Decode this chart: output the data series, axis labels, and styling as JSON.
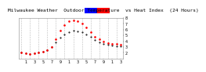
{
  "title": "Milwaukee Weather  Outdoor Temperature  vs Heat Index  (24 Hours)",
  "bg_color": "#ffffff",
  "plot_bg_color": "#ffffff",
  "text_color": "#000000",
  "grid_color": "#aaaaaa",
  "legend_temp_color": "#0000ff",
  "legend_heat_color": "#ff0000",
  "dot_color_temp": "#000000",
  "dot_color_heat": "#ff0000",
  "x_hours": [
    0,
    1,
    2,
    3,
    4,
    5,
    6,
    7,
    8,
    9,
    10,
    11,
    12,
    13,
    14,
    15,
    16,
    17,
    18,
    19,
    20,
    21,
    22,
    23
  ],
  "x_labels": [
    "1",
    "3",
    "5",
    "7",
    "9",
    "1",
    "3",
    "5",
    "7",
    "9",
    "1",
    "3"
  ],
  "x_label_hours": [
    1,
    3,
    5,
    7,
    9,
    11,
    13,
    15,
    17,
    19,
    21,
    23
  ],
  "temp_values": [
    20,
    19,
    18,
    19,
    21,
    22,
    24,
    30,
    38,
    46,
    52,
    56,
    58,
    57,
    55,
    52,
    47,
    42,
    38,
    36,
    34,
    33,
    32,
    31
  ],
  "heat_values": [
    20,
    19,
    18,
    19,
    21,
    22,
    24,
    30,
    44,
    58,
    68,
    74,
    76,
    74,
    70,
    64,
    56,
    48,
    43,
    40,
    37,
    36,
    35,
    34
  ],
  "ylim_min": 10,
  "ylim_max": 80,
  "ytick_vals": [
    20,
    30,
    40,
    50,
    60,
    70,
    80
  ],
  "ytick_labels": [
    "2",
    "3",
    "4",
    "5",
    "6",
    "7",
    "8"
  ],
  "title_fontsize": 4.5,
  "tick_fontsize": 3.5,
  "grid_x_positions": [
    0,
    2,
    4,
    6,
    8,
    10,
    12,
    14,
    16,
    18,
    20,
    22
  ]
}
